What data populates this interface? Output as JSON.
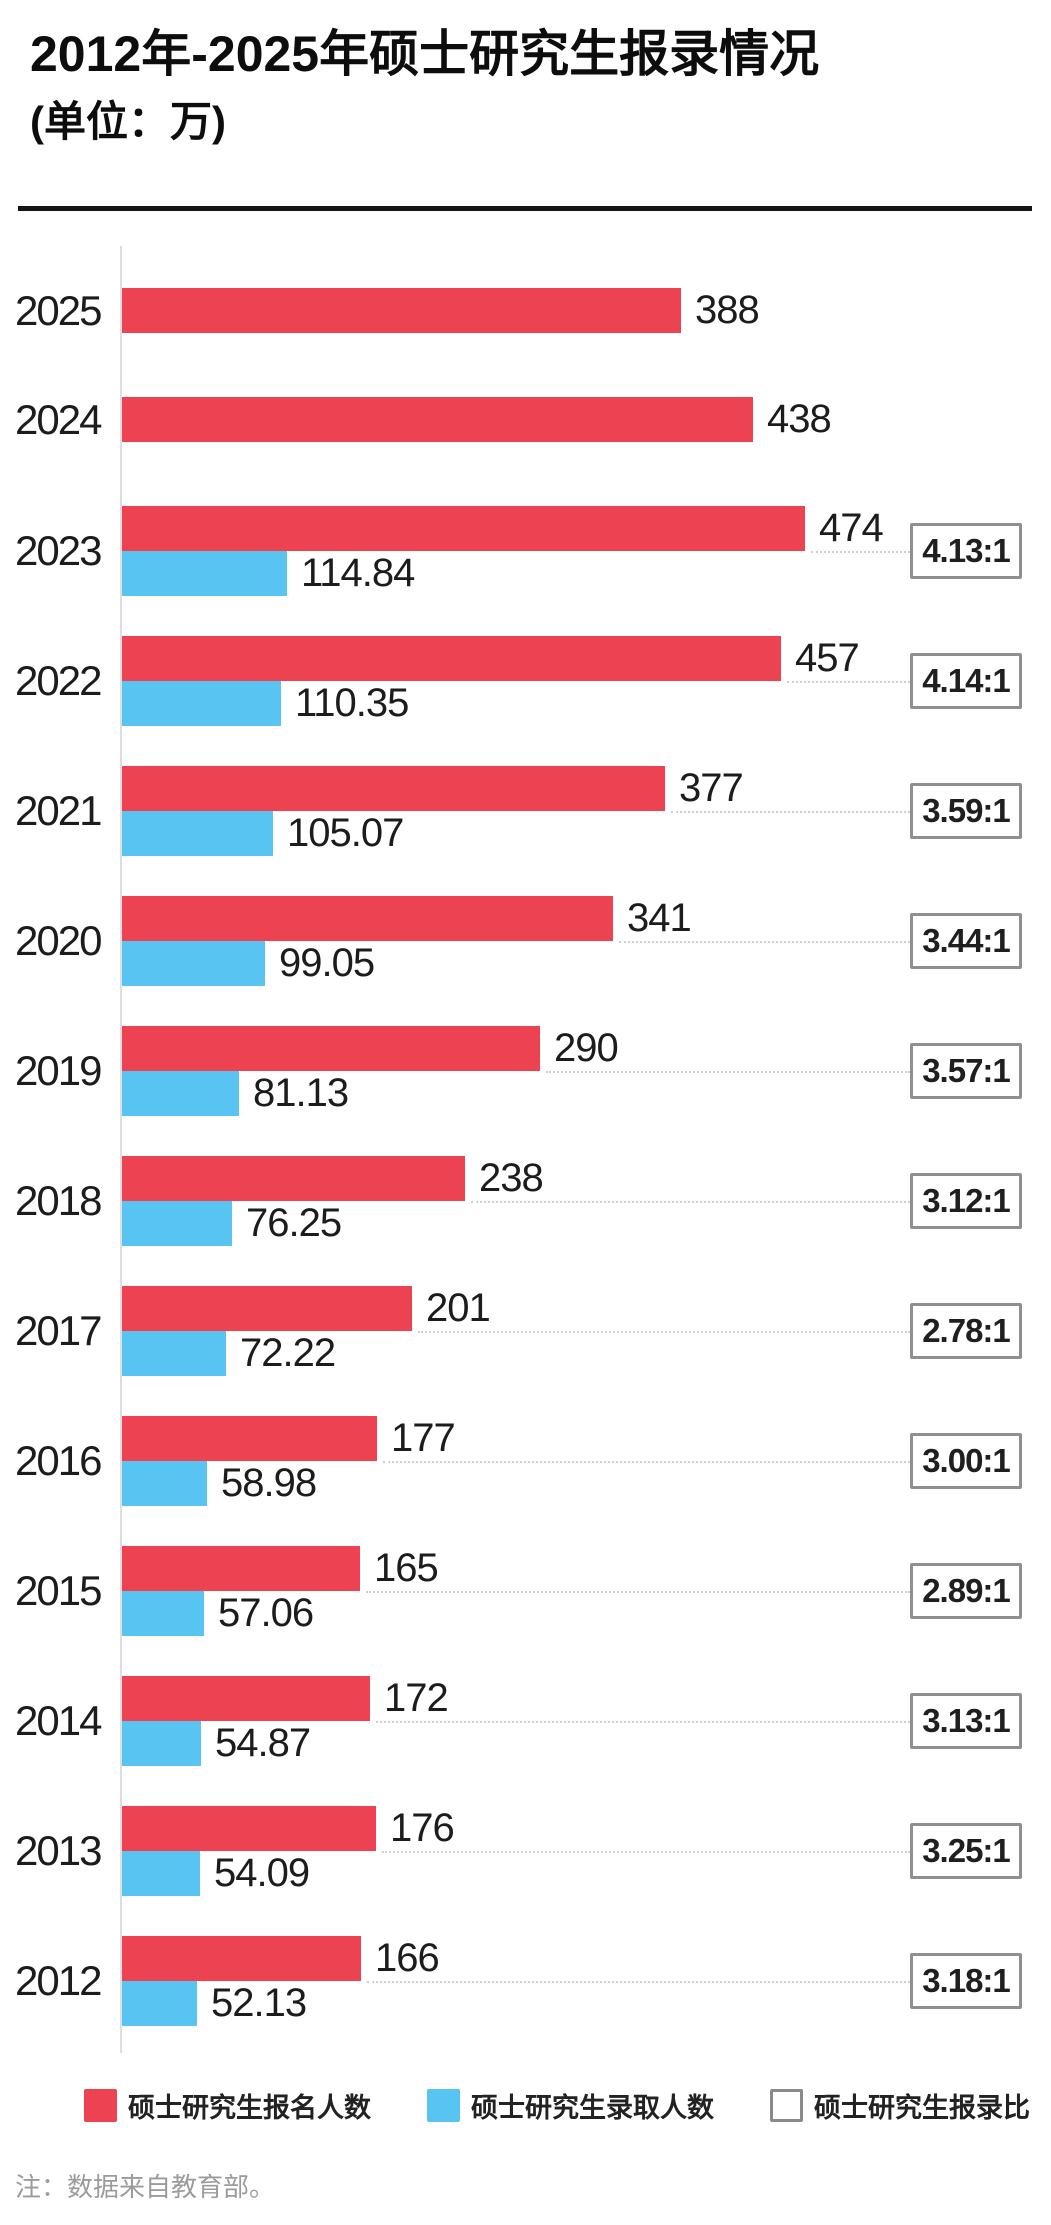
{
  "header": {
    "title": "2012年-2025年硕士研究生报录情况",
    "subtitle": "(单位：万)"
  },
  "chart_data": {
    "type": "bar",
    "orientation": "horizontal",
    "unit": "万",
    "categories": [
      "2025",
      "2024",
      "2023",
      "2022",
      "2021",
      "2020",
      "2019",
      "2018",
      "2017",
      "2016",
      "2015",
      "2014",
      "2013",
      "2012"
    ],
    "series": [
      {
        "name": "硕士研究生报名人数",
        "color": "#ec4252",
        "values": [
          388,
          438,
          474,
          457,
          377,
          341,
          290,
          238,
          201,
          177,
          165,
          172,
          176,
          166
        ]
      },
      {
        "name": "硕士研究生录取人数",
        "color": "#58c4f2",
        "values": [
          null,
          null,
          114.84,
          110.35,
          105.07,
          99.05,
          81.13,
          76.25,
          72.22,
          58.98,
          57.06,
          54.87,
          54.09,
          52.13
        ]
      }
    ],
    "ratio_name": "硕士研究生报录比",
    "ratios": [
      null,
      null,
      "4.13:1",
      "4.14:1",
      "3.59:1",
      "3.44:1",
      "3.57:1",
      "3.12:1",
      "2.78:1",
      "3.00:1",
      "2.89:1",
      "3.13:1",
      "3.25:1",
      "3.18:1"
    ],
    "xlim": [
      0,
      474
    ],
    "grid": false,
    "legend_position": "bottom"
  },
  "legend": {
    "items": [
      {
        "label": "硕士研究生报名人数",
        "swatch": "red"
      },
      {
        "label": "硕士研究生录取人数",
        "swatch": "blue"
      },
      {
        "label": "硕士研究生报录比",
        "swatch": "outline"
      }
    ]
  },
  "note": "注：数据来自教育部。",
  "colors": {
    "applicants_red": "#ec4252",
    "admitted_blue": "#58c4f2",
    "ratio_border": "#8f8f8f",
    "connector_dotted": "#cfcfcf",
    "axis_line": "#dedede",
    "note_gray": "#9b9b9b"
  }
}
